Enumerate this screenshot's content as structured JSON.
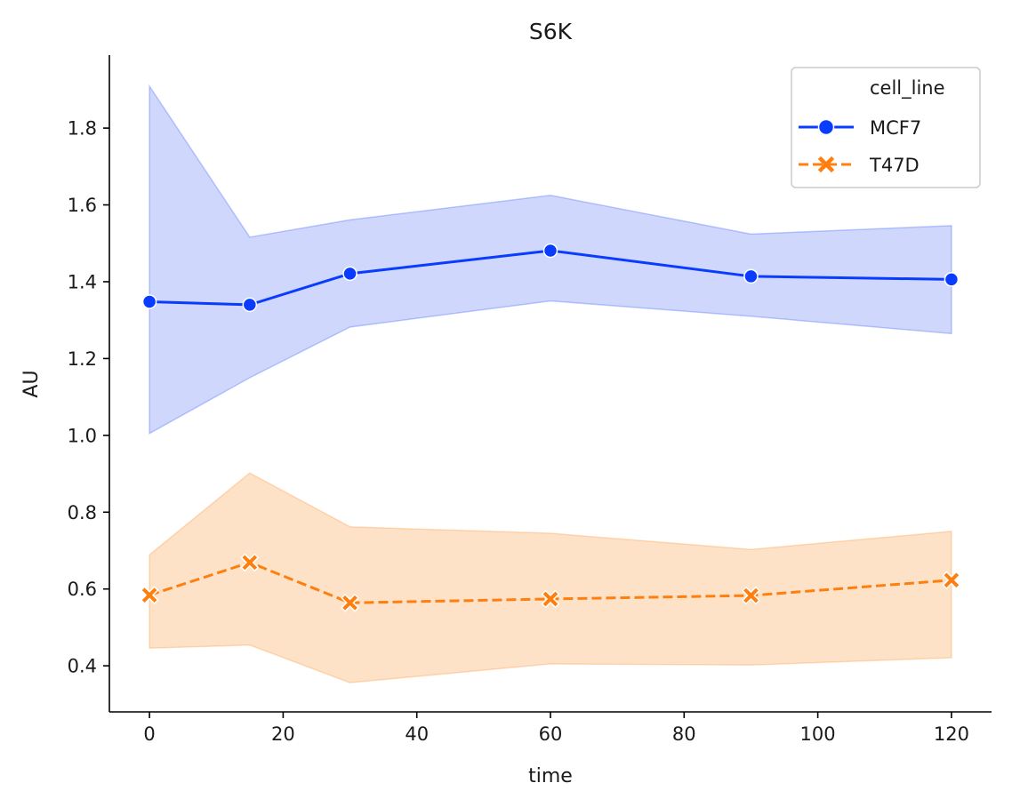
{
  "chart_data": {
    "type": "line",
    "title": "S6K",
    "xlabel": "time",
    "ylabel": "AU",
    "xlim": [
      -6,
      126
    ],
    "ylim": [
      0.28,
      1.99
    ],
    "x_ticks": [
      0,
      20,
      40,
      60,
      80,
      100,
      120
    ],
    "y_ticks": [
      0.4,
      0.6,
      0.8,
      1.0,
      1.2,
      1.4,
      1.6,
      1.8
    ],
    "grid": false,
    "legend": {
      "title": "cell_line",
      "placement": "top-right"
    },
    "x": [
      0,
      15,
      30,
      60,
      90,
      120
    ],
    "series": [
      {
        "name": "MCF7",
        "color": "#0a3cff",
        "band_color": "#cfd8fc",
        "marker": "circle",
        "line_style": "solid",
        "values": [
          1.348,
          1.34,
          1.421,
          1.481,
          1.414,
          1.406
        ],
        "ci_lower": [
          1.005,
          1.15,
          1.282,
          1.35,
          1.31,
          1.265
        ],
        "ci_upper": [
          1.909,
          1.516,
          1.561,
          1.625,
          1.524,
          1.546
        ]
      },
      {
        "name": "T47D",
        "color": "#ff7f0e",
        "band_color": "#fde2c8",
        "marker": "x",
        "line_style": "dashed",
        "values": [
          0.584,
          0.669,
          0.564,
          0.574,
          0.583,
          0.623
        ],
        "ci_lower": [
          0.446,
          0.454,
          0.356,
          0.405,
          0.402,
          0.421
        ],
        "ci_upper": [
          0.689,
          0.902,
          0.762,
          0.745,
          0.703,
          0.75
        ]
      }
    ]
  }
}
